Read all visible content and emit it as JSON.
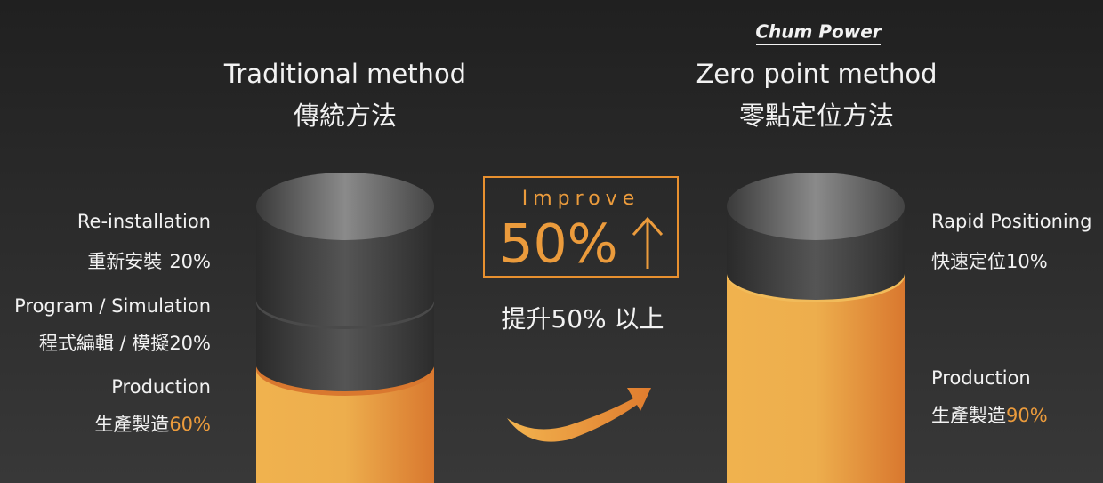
{
  "brand": "Chum Power",
  "left": {
    "title_en": "Traditional method",
    "title_zh": "傳統方法",
    "segments": [
      {
        "name_en": "Re-installation",
        "name_zh": "重新安裝",
        "percent": "20%"
      },
      {
        "name_en": "Program / Simulation",
        "name_zh": "程式編輯 / 模擬",
        "percent": "20%"
      },
      {
        "name_en": "Production",
        "name_zh": "生產製造",
        "percent": "60%"
      }
    ]
  },
  "center": {
    "improve": "Improve",
    "figure": "50%",
    "subtitle": "提升50% 以上"
  },
  "right": {
    "title_en": "Zero point method",
    "title_zh": "零點定位方法",
    "segments": [
      {
        "name_en": "Rapid Positioning",
        "name_zh": "快速定位",
        "percent": "10%"
      },
      {
        "name_en": "Production",
        "name_zh": "生產製造",
        "percent": "90%"
      }
    ]
  }
}
